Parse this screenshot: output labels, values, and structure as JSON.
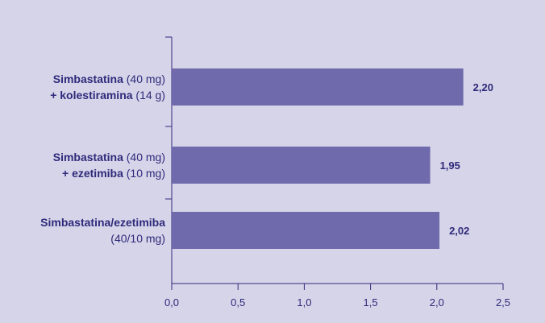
{
  "chart_data": {
    "type": "bar",
    "orientation": "horizontal",
    "categories": [
      "Simbastatina (40 mg) + kolestiramina (14 g)",
      "Simbastatina (40 mg) + ezetimiba (10 mg)",
      "Simbastatina/ezetimiba (40/10 mg)"
    ],
    "category_lines": [
      [
        [
          {
            "text": "Simbastatina",
            "bold": true
          },
          {
            "text": " (40 mg)",
            "bold": false
          }
        ],
        [
          {
            "text": "+ kolestiramina",
            "bold": true
          },
          {
            "text": " (14 g)",
            "bold": false
          }
        ]
      ],
      [
        [
          {
            "text": "Simbastatina",
            "bold": true
          },
          {
            "text": " (40 mg)",
            "bold": false
          }
        ],
        [
          {
            "text": "+ ezetimiba",
            "bold": true
          },
          {
            "text": " (10 mg)",
            "bold": false
          }
        ]
      ],
      [
        [
          {
            "text": "Simbastatina/ezetimiba",
            "bold": true
          }
        ],
        [
          {
            "text": "(40/10 mg)",
            "bold": false
          }
        ]
      ]
    ],
    "values": [
      2.2,
      1.95,
      2.02
    ],
    "value_labels": [
      "2,20",
      "1,95",
      "2,02"
    ],
    "xlim": [
      0,
      2.5
    ],
    "xticks": [
      0,
      0.5,
      1.0,
      1.5,
      2.0,
      2.5
    ],
    "xtick_labels": [
      "0,0",
      "0,5",
      "1,0",
      "1,5",
      "2,0",
      "2,5"
    ],
    "title": "",
    "xlabel": "",
    "ylabel": "",
    "grid": false,
    "legend": "none",
    "colors": {
      "background": "#d6d4e9",
      "bar": "#6e6aab",
      "axis": "#2e2a7a",
      "text": "#2e2a7a"
    }
  }
}
